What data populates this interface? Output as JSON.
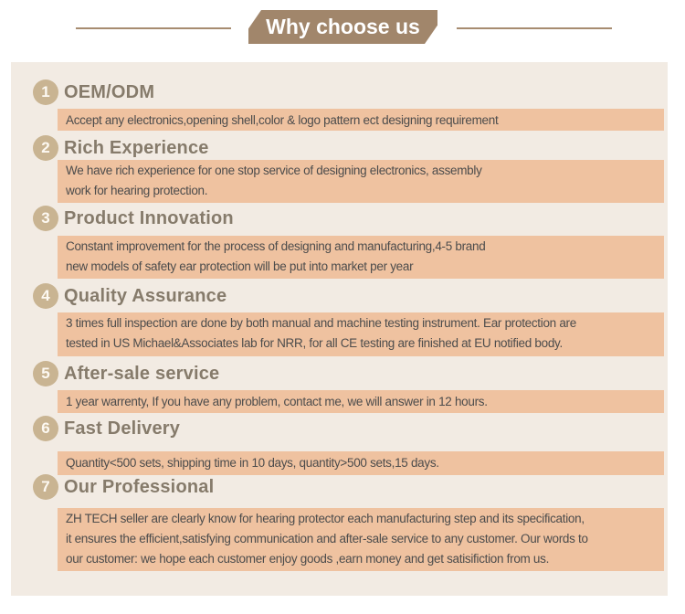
{
  "banner": {
    "title": "Why choose us"
  },
  "colors": {
    "banner_bg": "#a1866b",
    "divider_line": "#a78c70",
    "panel_bg": "#f2ebe3",
    "highlight_bg": "#efc2a0",
    "badge_bg": "#c9b492",
    "heading_text": "#867b6b",
    "body_text": "#4c4c4c"
  },
  "items": [
    {
      "number": "1",
      "title": "OEM/ODM",
      "body": "Accept any electronics,opening shell,color & logo pattern ect designing requirement"
    },
    {
      "number": "2",
      "title": "Rich Experience",
      "body": "We have rich experience for one stop service of designing  electronics, assembly\nwork for hearing protection."
    },
    {
      "number": "3",
      "title": "Product Innovation",
      "body": "Constant improvement for the process of designing and manufacturing,4-5 brand\nnew models of safety ear protection will be put into market per year"
    },
    {
      "number": "4",
      "title": "Quality Assurance",
      "body": "3 times full inspection are done by both manual and  machine testing instrument. Ear protection are\ntested in US Michael&Associates lab for NRR, for all CE testing  are finished at EU notified body."
    },
    {
      "number": "5",
      "title": "After-sale service",
      "body": "1 year warrenty, If you have any problem, contact me, we  will answer in 12 hours."
    },
    {
      "number": "6",
      "title": "Fast Delivery",
      "body": "Quantity<500 sets, shipping time in 10 days, quantity>500  sets,15 days."
    },
    {
      "number": "7",
      "title": "Our Professional",
      "body": "ZH TECH seller are clearly know for hearing protector  each manufacturing  step and its specification,\nit ensures  the efficient,satisfying communication and after-sale  service to any customer. Our words to\nour customer: we hope each customer enjoy goods ,earn money and get  satisifiction from us."
    }
  ]
}
